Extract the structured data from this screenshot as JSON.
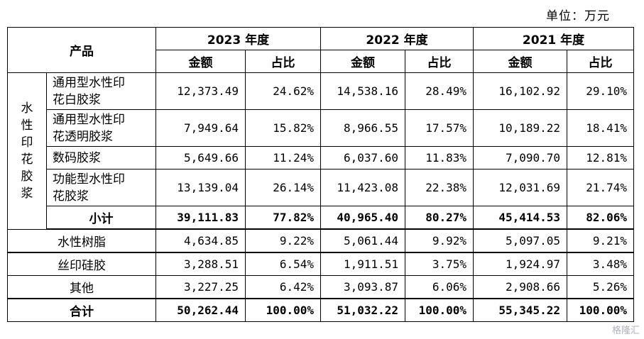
{
  "unit_note": "单位：万元",
  "header": {
    "product_label": "产品",
    "years": [
      "2023 年度",
      "2022 年度",
      "2021 年度"
    ],
    "amount_label": "金额",
    "ratio_label": "占比"
  },
  "group": {
    "label_chars": [
      "水",
      "性",
      "印",
      "花",
      "胶",
      "浆"
    ],
    "items": [
      {
        "name_lines": [
          "通用型水性印",
          "花白胶浆"
        ],
        "values": [
          "12,373.49",
          "24.62%",
          "14,538.16",
          "28.49%",
          "16,102.92",
          "29.10%"
        ]
      },
      {
        "name_lines": [
          "通用型水性印",
          "花透明胶浆"
        ],
        "values": [
          "7,949.64",
          "15.82%",
          "8,966.55",
          "17.57%",
          "10,189.22",
          "18.41%"
        ]
      },
      {
        "name_lines": [
          "数码胶浆"
        ],
        "values": [
          "5,649.66",
          "11.24%",
          "6,037.60",
          "11.83%",
          "7,090.70",
          "12.81%"
        ]
      },
      {
        "name_lines": [
          "功能型水性印",
          "花胶浆"
        ],
        "values": [
          "13,139.04",
          "26.14%",
          "11,423.08",
          "22.38%",
          "12,031.69",
          "21.74%"
        ]
      }
    ],
    "subtotal": {
      "name": "小计",
      "values": [
        "39,111.83",
        "77.82%",
        "40,965.40",
        "80.27%",
        "45,414.53",
        "82.06%"
      ]
    }
  },
  "rows": [
    {
      "name": "水性树脂",
      "values": [
        "4,634.85",
        "9.22%",
        "5,061.44",
        "9.92%",
        "5,097.05",
        "9.21%"
      ]
    },
    {
      "name": "丝印硅胶",
      "values": [
        "3,288.51",
        "6.54%",
        "1,911.51",
        "3.75%",
        "1,924.97",
        "3.48%"
      ]
    },
    {
      "name": "其他",
      "values": [
        "3,227.25",
        "6.42%",
        "3,093.87",
        "6.06%",
        "2,908.66",
        "5.26%"
      ]
    }
  ],
  "total": {
    "name": "合计",
    "values": [
      "50,262.44",
      "100.00%",
      "51,032.22",
      "100.00%",
      "55,345.22",
      "100.00%"
    ]
  },
  "watermark": "格隆汇"
}
